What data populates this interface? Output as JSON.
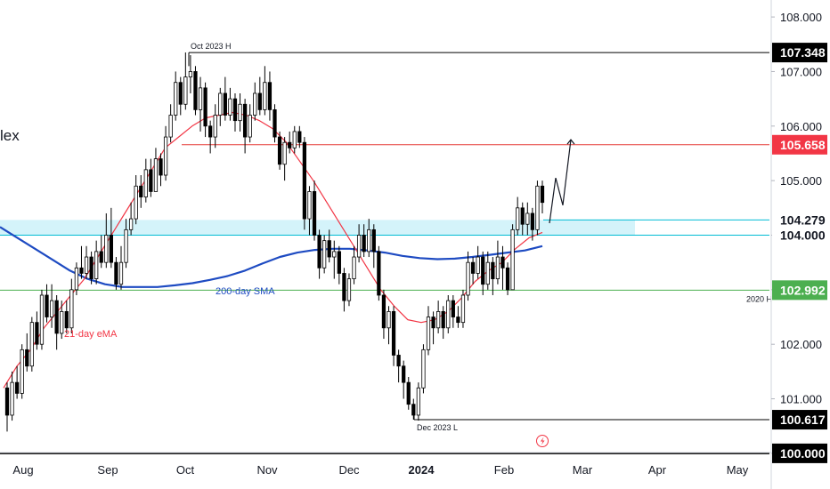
{
  "chart_data": {
    "type": "candlestick",
    "title": "lex",
    "y_axis": {
      "ylim": [
        99.8,
        108.3
      ],
      "ticks": [
        "108.000",
        "107.000",
        "106.000",
        "105.000",
        "104.000",
        "103.000",
        "102.000",
        "101.000",
        "100.000"
      ]
    },
    "x_axis": {
      "labels": [
        {
          "text": "Aug",
          "bold": false
        },
        {
          "text": "Sep",
          "bold": false
        },
        {
          "text": "Oct",
          "bold": false
        },
        {
          "text": "Nov",
          "bold": false
        },
        {
          "text": "Dec",
          "bold": false
        },
        {
          "text": "2024",
          "bold": true
        },
        {
          "text": "Feb",
          "bold": false
        },
        {
          "text": "Mar",
          "bold": false
        },
        {
          "text": "Apr",
          "bold": false
        },
        {
          "text": "May",
          "bold": false
        }
      ]
    },
    "colors": {
      "up": "#ffffff",
      "down": "#000000",
      "outline": "#000000",
      "ema": "#f23645",
      "sma": "#1e4bc2",
      "red_level": "#e53935",
      "cyan_level": "#00bcd4",
      "green_level": "#4caf50",
      "zone_fill": "#d4f3fa"
    },
    "levels": [
      {
        "name": "Oct 2023 H",
        "value": 107.348,
        "label": "107.348",
        "color": "#000000",
        "badge_bg": "#000000"
      },
      {
        "name": "resistance",
        "value": 105.658,
        "label": "105.658",
        "color": "#e53935",
        "badge_bg": "#f23645"
      },
      {
        "name": "zone-top",
        "value": 104.279,
        "label": "104.279",
        "color": "#00bcd4",
        "badge_bg": "#ffffff"
      },
      {
        "name": "zone-bottom",
        "value": 104.0,
        "label": "104.000",
        "color": "#00bcd4",
        "badge_bg": "#ffffff"
      },
      {
        "name": "2020 H",
        "value": 102.992,
        "label": "102.992",
        "color": "#4caf50",
        "badge_bg": "#4caf50"
      },
      {
        "name": "Dec 2023 L",
        "value": 100.617,
        "label": "100.617",
        "color": "#000000",
        "badge_bg": "#000000"
      },
      {
        "name": "round",
        "value": 100.0,
        "label": "100.000",
        "color": "#000000",
        "badge_bg": "#000000"
      }
    ],
    "annotations": [
      {
        "text": "Oct 2023 H"
      },
      {
        "text": "Dec 2023 L"
      },
      {
        "text": "2020 H"
      },
      {
        "text": "200-day SMA"
      },
      {
        "text": "21-day eMA"
      }
    ],
    "ema_21": [
      101.2,
      101.6,
      101.9,
      102.3,
      102.6,
      102.9,
      103.2,
      103.6,
      104.0,
      104.4,
      104.8,
      105.2,
      105.6,
      105.8,
      106.0,
      106.15,
      106.2,
      106.25,
      106.2,
      106.1,
      105.95,
      105.7,
      105.35,
      105.0,
      104.6,
      104.2,
      103.8,
      103.4,
      103.0,
      102.7,
      102.45,
      102.4,
      102.45,
      102.6,
      102.85,
      103.15,
      103.35,
      103.5,
      103.75,
      103.95,
      104.05
    ],
    "sma_200": [
      104.15,
      103.95,
      103.75,
      103.55,
      103.35,
      103.2,
      103.1,
      103.05,
      103.05,
      103.05,
      103.08,
      103.12,
      103.18,
      103.25,
      103.35,
      103.48,
      103.6,
      103.68,
      103.73,
      103.75,
      103.75,
      103.72,
      103.68,
      103.62,
      103.58,
      103.56,
      103.57,
      103.6,
      103.64,
      103.68,
      103.72,
      103.8
    ],
    "projection": [
      104.22,
      105.05,
      104.55,
      105.75
    ],
    "candles": [
      [
        101.2,
        100.7,
        101.3,
        100.4
      ],
      [
        100.7,
        101.3,
        101.5,
        100.6
      ],
      [
        101.3,
        101.1,
        101.6,
        101.0
      ],
      [
        101.1,
        101.9,
        102.0,
        101.0
      ],
      [
        101.9,
        101.6,
        102.2,
        101.5
      ],
      [
        101.6,
        102.4,
        102.5,
        101.5
      ],
      [
        102.4,
        102.0,
        102.6,
        101.9
      ],
      [
        102.0,
        102.9,
        103.0,
        101.9
      ],
      [
        102.9,
        102.5,
        103.1,
        102.4
      ],
      [
        102.5,
        102.8,
        103.1,
        102.3
      ],
      [
        102.8,
        102.2,
        102.9,
        101.9
      ],
      [
        102.2,
        102.6,
        102.8,
        102.1
      ],
      [
        102.6,
        102.3,
        102.8,
        102.2
      ],
      [
        102.3,
        103.0,
        103.2,
        102.2
      ],
      [
        103.0,
        103.4,
        103.5,
        102.9
      ],
      [
        103.4,
        103.3,
        103.8,
        103.2
      ],
      [
        103.3,
        103.6,
        103.8,
        103.2
      ],
      [
        103.6,
        103.2,
        103.7,
        103.1
      ],
      [
        103.2,
        103.7,
        103.9,
        103.1
      ],
      [
        103.7,
        103.5,
        104.0,
        103.4
      ],
      [
        103.5,
        104.0,
        104.4,
        103.4
      ],
      [
        104.0,
        103.5,
        104.5,
        103.4
      ],
      [
        103.5,
        103.1,
        103.6,
        103.0
      ],
      [
        103.1,
        103.5,
        103.8,
        103.0
      ],
      [
        103.5,
        104.1,
        104.3,
        103.4
      ],
      [
        104.1,
        104.3,
        104.6,
        104.0
      ],
      [
        104.3,
        104.9,
        105.1,
        104.2
      ],
      [
        104.9,
        104.7,
        105.1,
        104.5
      ],
      [
        104.7,
        105.2,
        105.4,
        104.6
      ],
      [
        105.2,
        104.8,
        105.4,
        104.7
      ],
      [
        104.8,
        105.4,
        105.6,
        104.8
      ],
      [
        105.4,
        105.1,
        105.5,
        104.9
      ],
      [
        105.1,
        105.8,
        106.0,
        105.0
      ],
      [
        105.8,
        106.2,
        106.4,
        105.7
      ],
      [
        106.2,
        106.8,
        107.0,
        106.1
      ],
      [
        106.8,
        106.4,
        106.9,
        106.2
      ],
      [
        106.4,
        106.9,
        107.35,
        106.3
      ],
      [
        106.9,
        107.0,
        107.3,
        106.6
      ],
      [
        107.0,
        106.3,
        107.1,
        106.2
      ],
      [
        106.3,
        106.7,
        106.9,
        105.9
      ],
      [
        106.7,
        106.0,
        106.8,
        105.8
      ],
      [
        106.0,
        105.8,
        106.1,
        105.5
      ],
      [
        105.8,
        106.2,
        106.4,
        105.6
      ],
      [
        106.2,
        106.6,
        106.7,
        106.0
      ],
      [
        106.6,
        106.2,
        106.9,
        106.1
      ],
      [
        106.2,
        106.5,
        106.7,
        106.1
      ],
      [
        106.5,
        106.1,
        106.6,
        105.9
      ],
      [
        106.1,
        106.4,
        106.6,
        105.9
      ],
      [
        106.4,
        105.8,
        106.5,
        105.5
      ],
      [
        105.8,
        106.2,
        106.4,
        105.7
      ],
      [
        106.2,
        106.6,
        106.8,
        106.1
      ],
      [
        106.6,
        106.3,
        106.9,
        106.2
      ],
      [
        106.3,
        106.8,
        107.1,
        106.2
      ],
      [
        106.8,
        106.3,
        107.0,
        106.1
      ],
      [
        106.3,
        105.8,
        106.4,
        105.7
      ],
      [
        105.8,
        105.3,
        105.9,
        105.2
      ],
      [
        105.3,
        105.7,
        105.8,
        105.0
      ],
      [
        105.7,
        105.6,
        105.9,
        105.5
      ],
      [
        105.6,
        105.9,
        106.0,
        105.5
      ],
      [
        105.9,
        105.7,
        106.0,
        105.6
      ],
      [
        105.7,
        104.3,
        105.8,
        104.1
      ],
      [
        104.3,
        104.8,
        104.9,
        104.0
      ],
      [
        104.8,
        104.0,
        105.0,
        103.9
      ],
      [
        104.0,
        103.4,
        104.1,
        103.2
      ],
      [
        103.4,
        103.9,
        104.0,
        103.3
      ],
      [
        103.9,
        103.6,
        104.1,
        103.5
      ],
      [
        103.6,
        103.7,
        103.9,
        103.2
      ],
      [
        103.7,
        103.3,
        103.8,
        103.1
      ],
      [
        103.3,
        102.8,
        103.4,
        102.6
      ],
      [
        102.8,
        103.2,
        103.3,
        102.7
      ],
      [
        103.2,
        103.6,
        103.8,
        103.1
      ],
      [
        103.6,
        104.0,
        104.2,
        103.5
      ],
      [
        104.0,
        103.7,
        104.2,
        103.6
      ],
      [
        103.7,
        104.1,
        104.3,
        103.6
      ],
      [
        104.1,
        103.7,
        104.2,
        103.4
      ],
      [
        103.7,
        102.9,
        103.8,
        102.8
      ],
      [
        102.9,
        102.3,
        103.0,
        102.1
      ],
      [
        102.3,
        102.6,
        102.7,
        102.0
      ],
      [
        102.6,
        101.8,
        102.7,
        101.6
      ],
      [
        101.8,
        101.6,
        101.9,
        101.3
      ],
      [
        101.6,
        101.3,
        101.7,
        101.0
      ],
      [
        101.3,
        100.9,
        101.4,
        100.8
      ],
      [
        100.9,
        100.7,
        101.0,
        100.617
      ],
      [
        100.7,
        101.2,
        101.3,
        100.6
      ],
      [
        101.2,
        101.9,
        102.0,
        101.1
      ],
      [
        101.9,
        102.5,
        102.7,
        101.8
      ],
      [
        102.5,
        102.3,
        102.6,
        102.0
      ],
      [
        102.3,
        102.6,
        102.8,
        102.2
      ],
      [
        102.6,
        102.3,
        102.7,
        102.1
      ],
      [
        102.3,
        102.8,
        102.9,
        102.2
      ],
      [
        102.8,
        102.5,
        102.9,
        102.3
      ],
      [
        102.5,
        102.4,
        102.7,
        102.3
      ],
      [
        102.4,
        102.9,
        103.0,
        102.3
      ],
      [
        102.9,
        103.5,
        103.7,
        102.8
      ],
      [
        103.5,
        103.3,
        103.6,
        103.1
      ],
      [
        103.3,
        103.6,
        103.8,
        103.2
      ],
      [
        103.6,
        103.1,
        103.7,
        102.9
      ],
      [
        103.1,
        103.5,
        103.7,
        103.0
      ],
      [
        103.5,
        103.2,
        103.6,
        102.9
      ],
      [
        103.2,
        103.6,
        103.9,
        103.1
      ],
      [
        103.6,
        103.4,
        103.8,
        103.0
      ],
      [
        103.4,
        103.0,
        103.5,
        102.9
      ],
      [
        103.0,
        104.1,
        104.2,
        103.0
      ],
      [
        104.1,
        104.5,
        104.7,
        104.0
      ],
      [
        104.5,
        104.2,
        104.6,
        104.0
      ],
      [
        104.2,
        104.4,
        104.6,
        104.0
      ],
      [
        104.4,
        104.1,
        104.5,
        103.9
      ],
      [
        104.1,
        104.9,
        105.0,
        104.0
      ],
      [
        104.9,
        104.6,
        105.0,
        104.4
      ]
    ]
  }
}
